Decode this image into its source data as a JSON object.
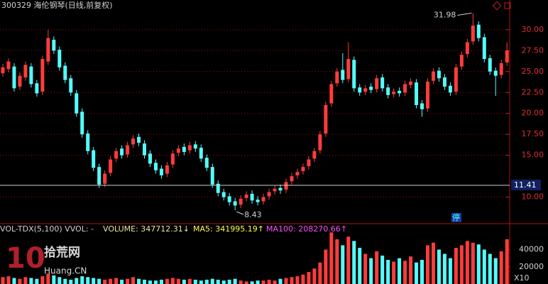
{
  "chart_data": {
    "type": "candlestick",
    "title": "300329 海伦钢琴(日线,前复权)",
    "open": [
      24.8,
      25.3,
      25.6,
      23.2,
      24.3,
      25.6,
      23.6,
      22.6,
      26.2,
      28.8,
      27.6,
      25.7,
      24.2,
      22.4,
      20.2,
      17.6,
      15.6,
      13.6,
      11.6,
      12.9,
      14.6,
      15.8,
      15.1,
      16.3,
      17.2,
      16.4,
      15.2,
      14.1,
      13.4,
      12.8,
      13.9,
      15.3,
      16,
      15.6,
      16.3,
      15.9,
      14.7,
      13.6,
      11.6,
      10.6,
      10.1,
      9.5,
      9.1,
      9.9,
      10.4,
      9.7,
      9.5,
      10.1,
      10.7,
      11.1,
      10.9,
      11.9,
      12.6,
      13.1,
      13.7,
      14.6,
      15.6,
      17.6,
      21.2,
      23.6,
      25.2,
      24.1,
      26.4,
      23.1,
      22.6,
      23.2,
      22.9,
      24.3,
      23.1,
      22.3,
      22.7,
      22.5,
      23.4,
      23.7,
      21.2,
      20.6,
      23.9,
      25.1,
      24.3,
      23.3,
      22.6,
      25.6,
      27.1,
      28.6,
      30.6,
      29.1,
      26.6,
      25.1,
      24.6,
      26.1
    ],
    "high": [
      25.9,
      26.6,
      26,
      24.9,
      26.2,
      26,
      24,
      26.9,
      30,
      29.2,
      28,
      26.1,
      24.6,
      22.8,
      20.6,
      18,
      16,
      14,
      13.2,
      14.9,
      15.9,
      16.2,
      16.6,
      17.4,
      17.6,
      16.8,
      15.6,
      14.5,
      13.8,
      14.2,
      15.6,
      16.2,
      16.4,
      16.6,
      16.7,
      16.3,
      15.1,
      14,
      12,
      11,
      10.5,
      9.9,
      10.2,
      10.7,
      10.8,
      10.1,
      10.4,
      11,
      11.4,
      11.5,
      12.2,
      12.9,
      13.4,
      14,
      14.9,
      15.9,
      17.9,
      21.4,
      23.9,
      25.4,
      27.2,
      28.5,
      26.8,
      23.5,
      23.4,
      23.6,
      24.6,
      24.7,
      23.5,
      23,
      23.1,
      23.9,
      24.2,
      24.1,
      21.6,
      24.2,
      25.4,
      25.5,
      24.7,
      23.7,
      25.9,
      27.4,
      28.9,
      31.98,
      31,
      29.5,
      27,
      25.5,
      26.4,
      28.5
    ],
    "low": [
      24.4,
      24.9,
      22.6,
      22.8,
      23.9,
      23.1,
      22,
      22.2,
      25.8,
      27.1,
      25.1,
      23.6,
      22.1,
      19.6,
      17.1,
      15.1,
      13.1,
      11.1,
      11.2,
      12.5,
      14.2,
      14.6,
      14.7,
      15.9,
      16.1,
      14.6,
      13.6,
      12.8,
      12.2,
      12.4,
      13.5,
      14.9,
      15,
      15.2,
      15.4,
      14.2,
      13.1,
      11.1,
      10.1,
      9.6,
      9,
      8.43,
      8.7,
      9.5,
      9.2,
      9,
      9.1,
      9.7,
      10.3,
      10.4,
      10.5,
      11.5,
      12.2,
      12.7,
      13.3,
      14.2,
      15.2,
      17.2,
      20.8,
      23.2,
      23.6,
      23.7,
      22.6,
      22.1,
      22.2,
      22.4,
      22.5,
      22.6,
      21.8,
      21.9,
      22,
      22.1,
      23,
      20.6,
      19.6,
      20.2,
      23.5,
      23.8,
      22.8,
      22.1,
      22.2,
      25.2,
      26.7,
      28.2,
      28.6,
      26.1,
      24.6,
      22.1,
      24.2,
      25.7
    ],
    "close": [
      25.5,
      26.2,
      23,
      24.5,
      25.8,
      23.5,
      22.4,
      26.5,
      29,
      27.5,
      25.5,
      24,
      22.5,
      20,
      17.5,
      15.5,
      13.5,
      11.5,
      12.8,
      14.5,
      15.5,
      15,
      16.2,
      17,
      16.5,
      15,
      14,
      13.2,
      12.6,
      13.8,
      15.2,
      15.8,
      15.4,
      16.2,
      15.8,
      14.6,
      13.5,
      11.5,
      10.5,
      10,
      9.4,
      9,
      9.8,
      10.3,
      9.6,
      9.4,
      10,
      10.6,
      11,
      10.8,
      11.8,
      12.5,
      13,
      13.6,
      14.5,
      15.5,
      17.5,
      21,
      23.5,
      25,
      24,
      26.5,
      23,
      22.5,
      23,
      22.8,
      24.2,
      23,
      22.2,
      22.6,
      22.4,
      23.5,
      23.8,
      21,
      20.5,
      23.8,
      25,
      24.2,
      23.2,
      22.5,
      25.5,
      27,
      28.5,
      30.5,
      29,
      26.5,
      25,
      24.5,
      26,
      27.5
    ],
    "up_color": "#ff3c3c",
    "down_color": "#54fcfc",
    "ylim": [
      7,
      32.7
    ],
    "yticks": [
      {
        "value": 10,
        "label": "10.00"
      },
      {
        "value": 15,
        "label": "15.00"
      },
      {
        "value": 17.5,
        "label": "17.50"
      },
      {
        "value": 20,
        "label": "20.00"
      },
      {
        "value": 22.5,
        "label": "22.50"
      },
      {
        "value": 25,
        "label": "25.00"
      },
      {
        "value": 27.5,
        "label": "27.50"
      },
      {
        "value": 30,
        "label": "30.00"
      }
    ],
    "grid": true,
    "annotations": [
      31.98,
      8.43
    ],
    "last_price": 11.41,
    "status_label": "停",
    "volume": {
      "indicator": "VOL-TDX(5,100) VVOL: -",
      "labels": [
        "VOLUME: 347712.31↓",
        "MA5: 341995.19↑",
        "MA100: 208270.66↑"
      ],
      "values": [
        8000,
        9000,
        7000,
        6000,
        8000,
        7000,
        6000,
        9000,
        12000,
        10000,
        8000,
        6000,
        5000,
        7000,
        9000,
        8000,
        7000,
        6000,
        5000,
        6000,
        7000,
        5000,
        6000,
        8000,
        6000,
        5000,
        4000,
        4000,
        5000,
        6000,
        7000,
        6000,
        5000,
        6000,
        5000,
        4000,
        5000,
        6000,
        5000,
        4000,
        5000,
        6000,
        4000,
        3000,
        3000,
        4000,
        4000,
        5000,
        4000,
        6000,
        7000,
        8000,
        9000,
        11000,
        14000,
        18000,
        25000,
        40000,
        60000,
        52000,
        45000,
        55000,
        50000,
        42000,
        35000,
        30000,
        38000,
        33000,
        28000,
        26000,
        30000,
        27000,
        32000,
        25000,
        28000,
        45000,
        48000,
        40000,
        35000,
        30000,
        42000,
        45000,
        50000,
        48000,
        46000,
        40000,
        35000,
        30000,
        38000,
        52000
      ],
      "ylim": [
        0,
        66000
      ],
      "yticks": [
        20000,
        40000
      ],
      "unit_label": "X10"
    }
  },
  "watermark": {
    "number": "10",
    "name": "拾荒网",
    "site": "Huang.CN"
  }
}
